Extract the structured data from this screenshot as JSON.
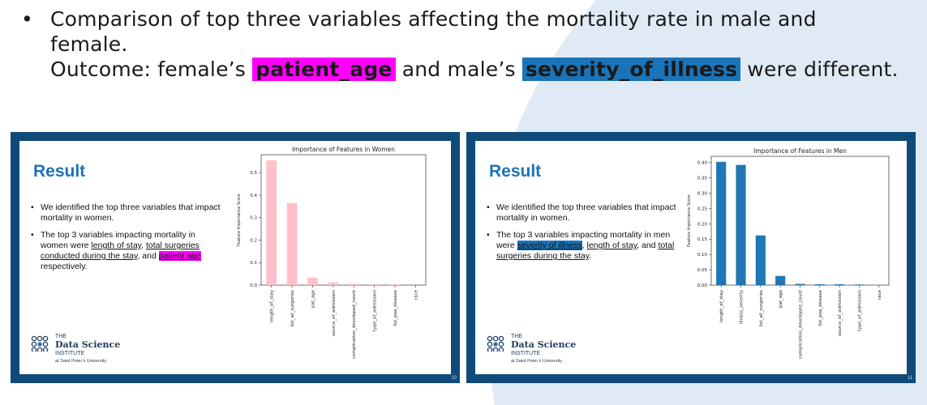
{
  "header": {
    "bullet": "•",
    "line1": "Comparison of top three variables affecting the mortality rate in male and",
    "line2": "female.",
    "outcome_prefix": "Outcome: female’s ",
    "outcome_hl1": "patient_age",
    "outcome_mid": " and male’s ",
    "outcome_hl2": "severity_of_illness",
    "outcome_suffix": " were different."
  },
  "colors": {
    "slide_border": "#0f4a7b",
    "title_blue": "#1e72b6",
    "highlight_pink": "#ff00ff",
    "highlight_blue": "#1a74b9",
    "bar_pink": "#ffc0cb",
    "bar_blue": "#1f77b4"
  },
  "logo": {
    "line1": "THE",
    "line2": "Data Science",
    "line3": "INSTITUTE",
    "line4": "at Saint Peter’s University"
  },
  "slides": [
    {
      "title": "Result",
      "page": "10",
      "b1": "We identified the top three variables that impact mortality in women.",
      "b2_pre": "The top 3 variables impacting mortality in women were ",
      "b2_u1": "length of stay",
      "b2_sep1": ", ",
      "b2_u2": "total surgeries conducted during the stay",
      "b2_sep2": ", and ",
      "b2_hl": "patient age",
      "b2_post": " respectively."
    },
    {
      "title": "Result",
      "page": "11",
      "b1": "We identified the top three variables that impact mortality in women.",
      "b2_pre": "The top 3 variables impacting mortality in men were ",
      "b2_hl": "severity of illness",
      "b2_sep1": ", ",
      "b2_u1": "length of stay",
      "b2_sep2": ", and ",
      "b2_u2": "total surgeries during the stay",
      "b2_post": "."
    }
  ],
  "chart_data": [
    {
      "type": "bar",
      "title": "Importance of Features in Women",
      "ylabel": "Feature Importance Score",
      "categories": [
        "length_of_stay",
        "list_all_surgeries",
        "pat_age",
        "source_of_admission",
        "complication_developed_count",
        "type_of_admission",
        "list_poa_disease",
        "race"
      ],
      "values": [
        0.555,
        0.365,
        0.033,
        0.012,
        0.006,
        0.005,
        0.004,
        0.0
      ],
      "ylim": [
        0,
        0.58
      ],
      "yticks": [
        0.0,
        0.1,
        0.2,
        0.3,
        0.4,
        0.5
      ],
      "ytick_labels": [
        "0.0",
        "0.1",
        "0.2",
        "0.3",
        "0.4",
        "0.5"
      ],
      "color": "#ffc0cb"
    },
    {
      "type": "bar",
      "title": "Importance of Features in Men",
      "ylabel": "Feature Importance Score",
      "categories": [
        "length_of_stay",
        "illness_severity",
        "list_all_surgeries",
        "pat_age",
        "complication_developed_count",
        "list_poa_disease",
        "source_of_admission",
        "type_of_admission",
        "race"
      ],
      "values": [
        0.402,
        0.392,
        0.162,
        0.03,
        0.004,
        0.003,
        0.003,
        0.002,
        0.0
      ],
      "ylim": [
        0,
        0.42
      ],
      "yticks": [
        0.0,
        0.05,
        0.1,
        0.15,
        0.2,
        0.25,
        0.3,
        0.35,
        0.4
      ],
      "ytick_labels": [
        "0.00",
        "0.05",
        "0.10",
        "0.15",
        "0.20",
        "0.25",
        "0.30",
        "0.35",
        "0.40"
      ],
      "color": "#1f77b4"
    }
  ]
}
